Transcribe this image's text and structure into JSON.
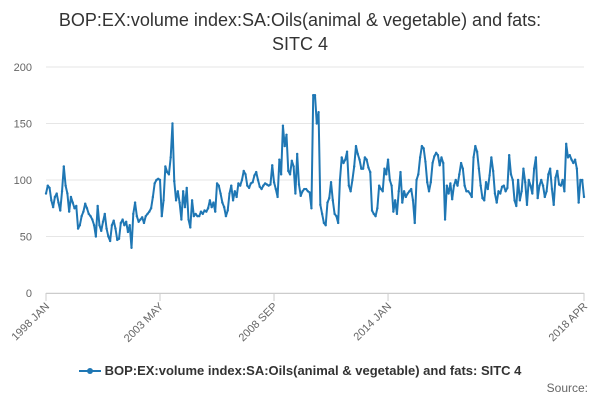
{
  "title": "BOP:EX:volume index:SA:Oils(animal & vegetable) and fats: SITC 4",
  "source_label": "Source:",
  "legend": {
    "label": "BOP:EX:volume index:SA:Oils(animal & vegetable) and fats: SITC 4"
  },
  "colors": {
    "series": "#1f77b4",
    "grid": "#e6e6e6",
    "axis": "#cccccc",
    "text": "#333333"
  },
  "chart_data": {
    "type": "line",
    "title": "BOP:EX:volume index:SA:Oils(animal & vegetable) and fats: SITC 4",
    "xlabel": "",
    "ylabel": "",
    "ylim": [
      0,
      200
    ],
    "yticks": [
      0,
      50,
      100,
      150,
      200
    ],
    "xtick_labels": [
      "1998 JAN",
      "2003 MAY",
      "2008 SEP",
      "2014 JAN",
      "2018 APR"
    ],
    "x_start": "1998-01",
    "x_end": "2018-04",
    "grid": true,
    "legend_position": "bottom",
    "series": [
      {
        "name": "BOP:EX:volume index:SA:Oils(animal & vegetable) and fats: SITC 4",
        "values": [
          88,
          95,
          93,
          82,
          76,
          85,
          88,
          80,
          73,
          90,
          112,
          95,
          88,
          72,
          85,
          80,
          75,
          77,
          57,
          60,
          68,
          72,
          79,
          75,
          70,
          68,
          65,
          60,
          50,
          77,
          60,
          55,
          63,
          70,
          57,
          50,
          46,
          60,
          64,
          57,
          47,
          48,
          62,
          65,
          60,
          63,
          54,
          60,
          40,
          70,
          80,
          68,
          63,
          65,
          67,
          62,
          68,
          70,
          72,
          75,
          85,
          97,
          100,
          101,
          100,
          68,
          82,
          112,
          107,
          105,
          120,
          150,
          99,
          82,
          90,
          80,
          65,
          90,
          76,
          93,
          65,
          58,
          82,
          68,
          70,
          68,
          68,
          72,
          70,
          73,
          72,
          75,
          82,
          76,
          80,
          72,
          97,
          95,
          88,
          80,
          76,
          68,
          73,
          88,
          95,
          82,
          90,
          85,
          97,
          95,
          100,
          108,
          105,
          95,
          93,
          97,
          98,
          104,
          107,
          100,
          94,
          92,
          95,
          97,
          96,
          95,
          96,
          113,
          98,
          92,
          85,
          118,
          105,
          148,
          130,
          140,
          108,
          105,
          117,
          112,
          88,
          123,
          96,
          86,
          90,
          92,
          92,
          90,
          89,
          75,
          175,
          175,
          150,
          160,
          78,
          70,
          62,
          60,
          80,
          84,
          98,
          82,
          70,
          68,
          62,
          100,
          120,
          115,
          118,
          125,
          95,
          90,
          100,
          112,
          130,
          123,
          118,
          110,
          110,
          120,
          118,
          111,
          107,
          73,
          70,
          68,
          75,
          95,
          92,
          90,
          110,
          105,
          118,
          100,
          95,
          72,
          82,
          70,
          90,
          107,
          80,
          90,
          85,
          88,
          90,
          92,
          82,
          62,
          100,
          105,
          120,
          130,
          128,
          116,
          98,
          90,
          98,
          115,
          121,
          124,
          122,
          113,
          120,
          115,
          65,
          95,
          88,
          97,
          83,
          95,
          100,
          95,
          105,
          115,
          110,
          95,
          90,
          90,
          88,
          85,
          120,
          130,
          125,
          110,
          95,
          84,
          82,
          98,
          92,
          104,
          120,
          108,
          88,
          80,
          90,
          88,
          94,
          95,
          90,
          93,
          122,
          105,
          100,
          82,
          77,
          100,
          82,
          90,
          110,
          98,
          78,
          100,
          95,
          88,
          110,
          120,
          84,
          95,
          100,
          95,
          85,
          90,
          105,
          110,
          92,
          78,
          102,
          108,
          96,
          95,
          100,
          90,
          132,
          120,
          122,
          118,
          115,
          118,
          110,
          80,
          100,
          100,
          85
        ]
      }
    ]
  }
}
